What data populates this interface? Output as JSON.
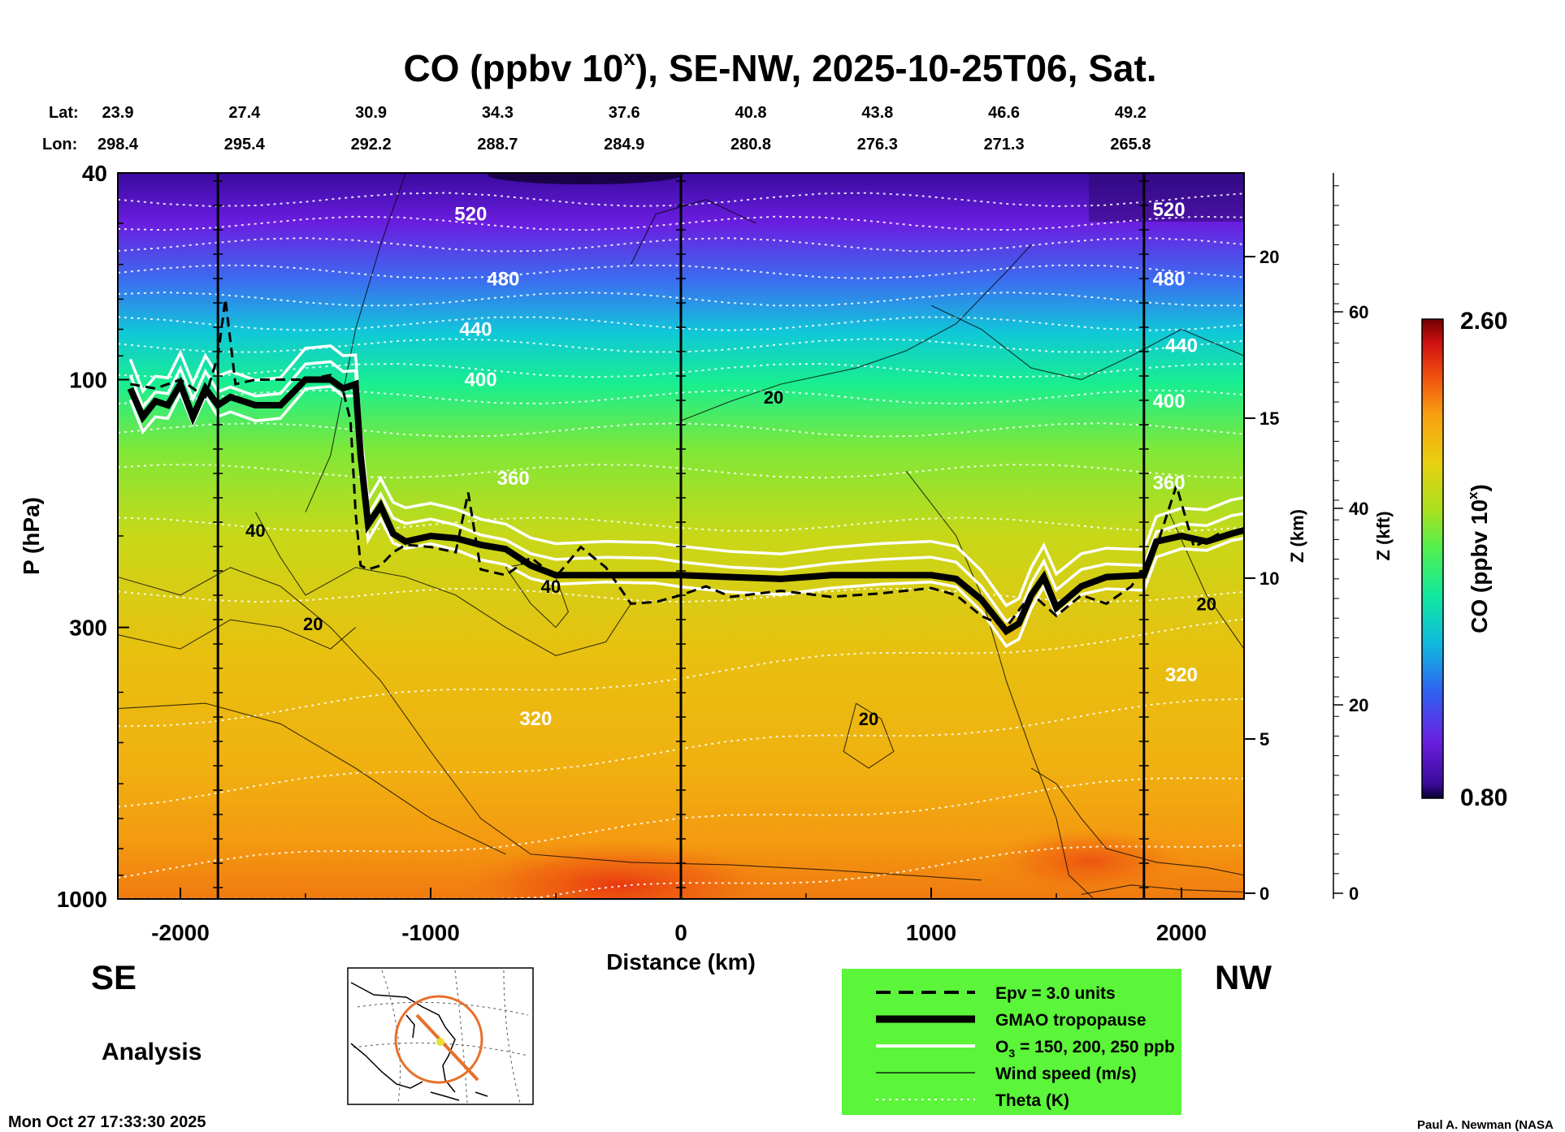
{
  "chart_data": {
    "type": "heatmap",
    "title": "CO (ppbv 10",
    "title_sup": "x",
    "title_rest": "), SE-NW, 2025-10-25T06, Sat.",
    "lat_label": "Lat:",
    "lon_label": "Lon:",
    "lats": [
      "23.9",
      "27.4",
      "30.9",
      "34.3",
      "37.6",
      "40.8",
      "43.8",
      "46.6",
      "49.2"
    ],
    "lons": [
      "298.4",
      "295.4",
      "292.2",
      "288.7",
      "284.9",
      "280.8",
      "276.3",
      "271.3",
      "265.8"
    ],
    "xlabel": "Distance (km)",
    "ylabel": "P (hPa)",
    "xlim": [
      -2250,
      2250
    ],
    "x_ticks": [
      -2000,
      -1000,
      0,
      1000,
      2000
    ],
    "x_tick_labels": [
      "-2000",
      "-1000",
      "0",
      "1000",
      "2000"
    ],
    "ylim": [
      1000,
      40
    ],
    "y_scale": "log",
    "y_ticks": [
      40,
      100,
      300,
      1000
    ],
    "y_tick_labels": [
      "40",
      "100",
      "300",
      "1000"
    ],
    "z_km_label": "Z (km)",
    "z_km_ticks": [
      "0",
      "5",
      "10",
      "15",
      "20"
    ],
    "z_kft_label": "Z (kft)",
    "z_kft_ticks": [
      "0",
      "20",
      "40",
      "60"
    ],
    "vertical_lines_km": [
      -1850,
      0,
      1850
    ],
    "colorbar": {
      "label": "CO (ppbv 10",
      "label_sup": "x",
      "label_rest": ")",
      "min_label": "0.80",
      "max_label": "2.60",
      "min": 0.8,
      "max": 2.6
    },
    "theta_labels": [
      {
        "text": "520",
        "x": -840,
        "p": 48
      },
      {
        "text": "480",
        "x": -710,
        "p": 64
      },
      {
        "text": "440",
        "x": -820,
        "p": 80
      },
      {
        "text": "400",
        "x": -800,
        "p": 100
      },
      {
        "text": "360",
        "x": -670,
        "p": 155
      },
      {
        "text": "320",
        "x": -580,
        "p": 450
      },
      {
        "text": "520",
        "x": 1950,
        "p": 47
      },
      {
        "text": "480",
        "x": 1950,
        "p": 64
      },
      {
        "text": "440",
        "x": 2000,
        "p": 86
      },
      {
        "text": "400",
        "x": 1950,
        "p": 110
      },
      {
        "text": "360",
        "x": 1950,
        "p": 158
      },
      {
        "text": "320",
        "x": 2000,
        "p": 370
      }
    ],
    "wind_labels": [
      {
        "text": "20",
        "x": 370,
        "p": 108
      },
      {
        "text": "40",
        "x": -1700,
        "p": 195
      },
      {
        "text": "20",
        "x": -1470,
        "p": 295
      },
      {
        "text": "40",
        "x": -520,
        "p": 250
      },
      {
        "text": "20",
        "x": 750,
        "p": 450
      },
      {
        "text": "20",
        "x": 2100,
        "p": 270
      }
    ],
    "tropopause_km": [
      [
        -2200,
        104
      ],
      [
        -2150,
        118
      ],
      [
        -2100,
        110
      ],
      [
        -2050,
        112
      ],
      [
        -2000,
        102
      ],
      [
        -1950,
        118
      ],
      [
        -1900,
        104
      ],
      [
        -1850,
        112
      ],
      [
        -1800,
        108
      ],
      [
        -1700,
        112
      ],
      [
        -1600,
        112
      ],
      [
        -1500,
        100
      ],
      [
        -1400,
        100
      ],
      [
        -1350,
        104
      ],
      [
        -1300,
        102
      ],
      [
        -1280,
        140
      ],
      [
        -1250,
        190
      ],
      [
        -1200,
        175
      ],
      [
        -1150,
        198
      ],
      [
        -1100,
        205
      ],
      [
        -1000,
        200
      ],
      [
        -900,
        202
      ],
      [
        -800,
        208
      ],
      [
        -700,
        212
      ],
      [
        -600,
        228
      ],
      [
        -500,
        238
      ],
      [
        -300,
        238
      ],
      [
        -100,
        238
      ],
      [
        0,
        238
      ],
      [
        200,
        240
      ],
      [
        400,
        242
      ],
      [
        600,
        238
      ],
      [
        800,
        238
      ],
      [
        1000,
        238
      ],
      [
        1100,
        242
      ],
      [
        1200,
        265
      ],
      [
        1300,
        305
      ],
      [
        1350,
        295
      ],
      [
        1400,
        260
      ],
      [
        1450,
        240
      ],
      [
        1500,
        275
      ],
      [
        1600,
        250
      ],
      [
        1700,
        240
      ],
      [
        1850,
        238
      ],
      [
        1900,
        205
      ],
      [
        2000,
        200
      ],
      [
        2100,
        205
      ],
      [
        2200,
        198
      ],
      [
        2250,
        195
      ]
    ],
    "epv_km": [
      [
        -2200,
        102
      ],
      [
        -2100,
        104
      ],
      [
        -2000,
        100
      ],
      [
        -1900,
        108
      ],
      [
        -1850,
        90
      ],
      [
        -1820,
        70
      ],
      [
        -1780,
        102
      ],
      [
        -1700,
        100
      ],
      [
        -1500,
        100
      ],
      [
        -1400,
        98
      ],
      [
        -1350,
        105
      ],
      [
        -1320,
        120
      ],
      [
        -1300,
        180
      ],
      [
        -1280,
        228
      ],
      [
        -1250,
        232
      ],
      [
        -1200,
        228
      ],
      [
        -1150,
        215
      ],
      [
        -1100,
        208
      ],
      [
        -1000,
        210
      ],
      [
        -900,
        215
      ],
      [
        -850,
        165
      ],
      [
        -800,
        232
      ],
      [
        -700,
        238
      ],
      [
        -600,
        220
      ],
      [
        -500,
        240
      ],
      [
        -400,
        210
      ],
      [
        -300,
        230
      ],
      [
        -200,
        270
      ],
      [
        -100,
        268
      ],
      [
        0,
        260
      ],
      [
        100,
        250
      ],
      [
        200,
        262
      ],
      [
        400,
        255
      ],
      [
        600,
        262
      ],
      [
        800,
        258
      ],
      [
        1000,
        252
      ],
      [
        1100,
        260
      ],
      [
        1200,
        285
      ],
      [
        1300,
        300
      ],
      [
        1400,
        258
      ],
      [
        1500,
        285
      ],
      [
        1600,
        260
      ],
      [
        1700,
        270
      ],
      [
        1800,
        250
      ],
      [
        1900,
        210
      ],
      [
        1980,
        160
      ],
      [
        2050,
        210
      ],
      [
        2150,
        198
      ]
    ],
    "legend": [
      {
        "style": "dashed",
        "label": "Epv = 3.0 units"
      },
      {
        "style": "thick",
        "label": "GMAO tropopause"
      },
      {
        "style": "white",
        "label": "O",
        "label_sub": "3",
        "label_rest": " = 150, 200, 250 ppb"
      },
      {
        "style": "thin",
        "label": "Wind speed (m/s)"
      },
      {
        "style": "dotted",
        "label": "Theta (K)"
      }
    ],
    "corner_left": "SE",
    "corner_right": "NW",
    "analysis_label": "Analysis",
    "timestamp": "Mon Oct 27 17:33:30 2025",
    "credit": "Paul A. Newman (NASA"
  },
  "colors": {
    "legend_bg": "#5bf53a",
    "map_ring": "#e8702a"
  }
}
